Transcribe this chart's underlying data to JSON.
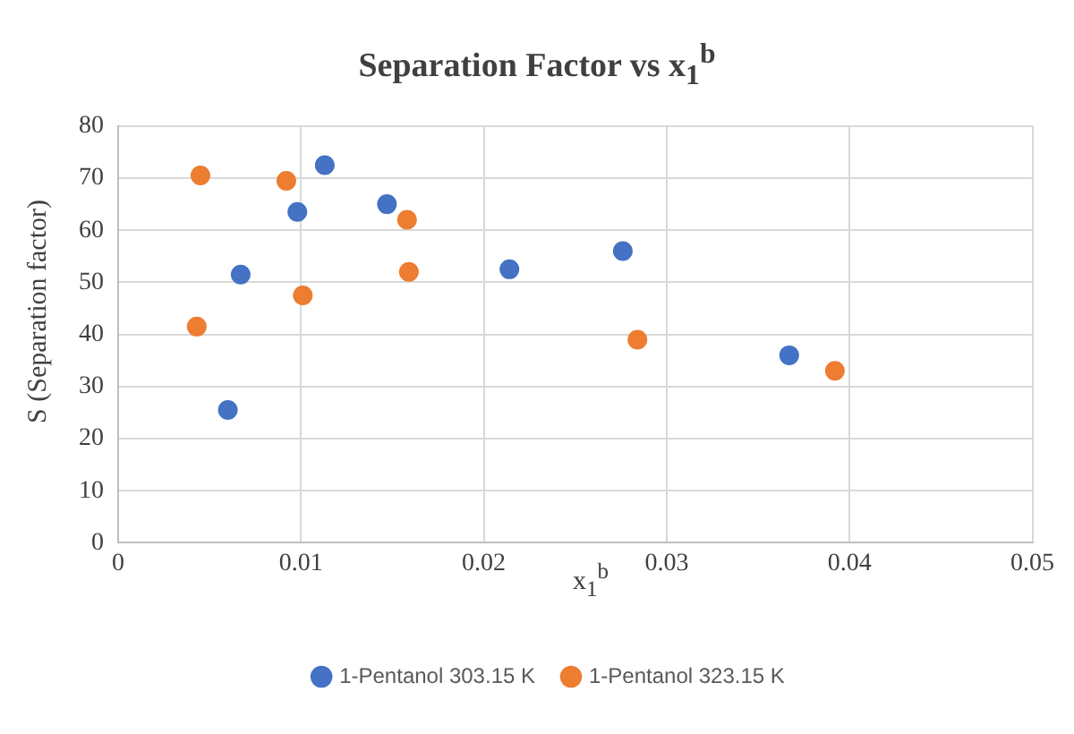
{
  "chart_data": {
    "type": "scatter",
    "title": "Separation Factor vs x$_{1}$$^{b}$",
    "xlabel": "x$_{1}$$^{b}$",
    "ylabel": "S (Separation factor)",
    "xlim": [
      0,
      0.05
    ],
    "xticks": [
      0,
      0.01,
      0.02,
      0.03,
      0.04,
      0.05
    ],
    "ylim": [
      0,
      80
    ],
    "yticks": [
      0,
      10,
      20,
      30,
      40,
      50,
      60,
      70,
      80
    ],
    "grid": true,
    "legend": "bottom",
    "marker": "circle",
    "series": [
      {
        "name": "1-Pentanol 303.15 K",
        "color": "#4472c4",
        "x": [
          0.006,
          0.0067,
          0.0098,
          0.0113,
          0.0147,
          0.0214,
          0.0276,
          0.0367
        ],
        "values": [
          25.5,
          51.5,
          63.5,
          72.5,
          65,
          52.5,
          56,
          36
        ]
      },
      {
        "name": "1-Pentanol 323.15 K",
        "color": "#ed7d31",
        "x": [
          0.0045,
          0.0092,
          0.0158,
          0.0159,
          0.0101,
          0.0043,
          0.0284,
          0.0392
        ],
        "values": [
          70.5,
          69.5,
          62,
          52,
          47.5,
          41.5,
          39,
          33
        ]
      }
    ]
  }
}
